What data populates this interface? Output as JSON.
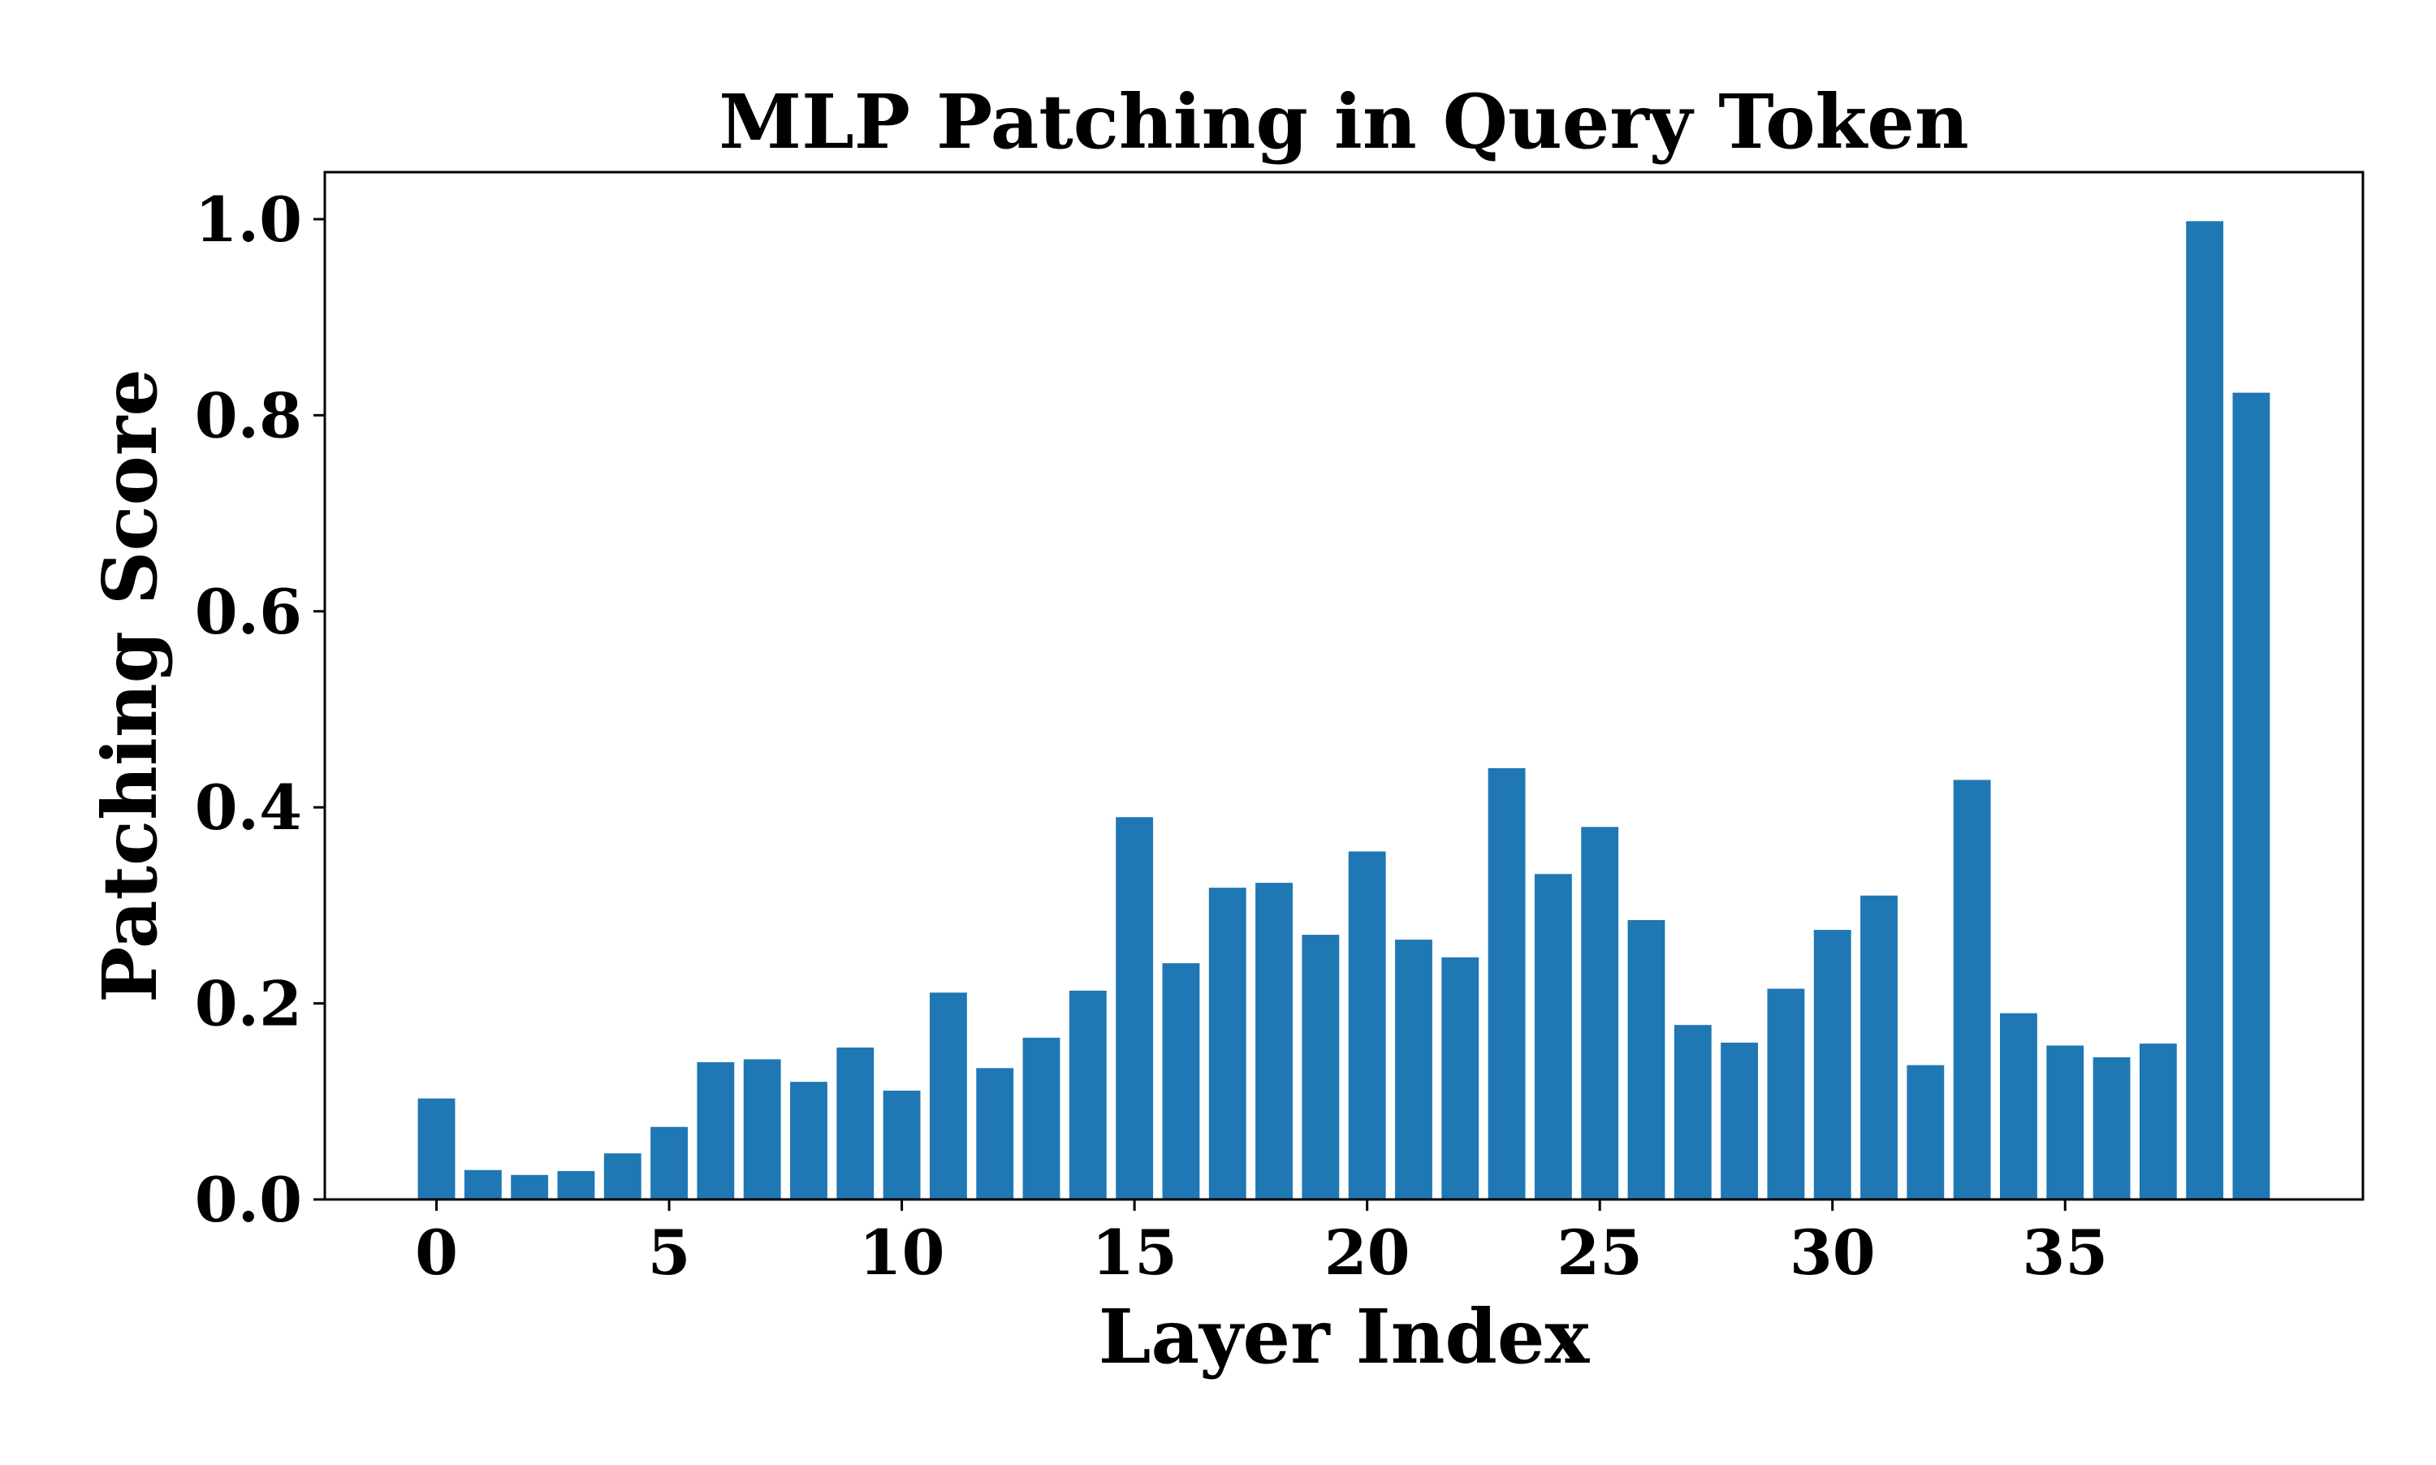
{
  "chart_data": {
    "type": "bar",
    "title": "MLP Patching in Query Token",
    "xlabel": "Layer Index",
    "ylabel": "Patching Score",
    "x": [
      0,
      1,
      2,
      3,
      4,
      5,
      6,
      7,
      8,
      9,
      10,
      11,
      12,
      13,
      14,
      15,
      16,
      17,
      18,
      19,
      20,
      21,
      22,
      23,
      24,
      25,
      26,
      27,
      28,
      29,
      30,
      31,
      32,
      33,
      34,
      35,
      36,
      37,
      38,
      39
    ],
    "values": [
      0.103,
      0.03,
      0.025,
      0.029,
      0.047,
      0.074,
      0.14,
      0.143,
      0.12,
      0.155,
      0.111,
      0.211,
      0.134,
      0.165,
      0.213,
      0.39,
      0.241,
      0.318,
      0.323,
      0.27,
      0.355,
      0.265,
      0.247,
      0.44,
      0.332,
      0.38,
      0.285,
      0.178,
      0.16,
      0.215,
      0.275,
      0.31,
      0.137,
      0.428,
      0.19,
      0.157,
      0.145,
      0.159,
      0.998,
      0.823
    ],
    "xticks": [
      "0",
      "5",
      "10",
      "15",
      "20",
      "25",
      "30",
      "35"
    ],
    "yticks": [
      "0.0",
      "0.2",
      "0.4",
      "0.6",
      "0.8",
      "1.0"
    ],
    "xlim": [
      -2.4,
      41.4
    ],
    "ylim": [
      0,
      1.048
    ],
    "bar_color": "#1f77b4",
    "grid": false,
    "legend": "none"
  }
}
